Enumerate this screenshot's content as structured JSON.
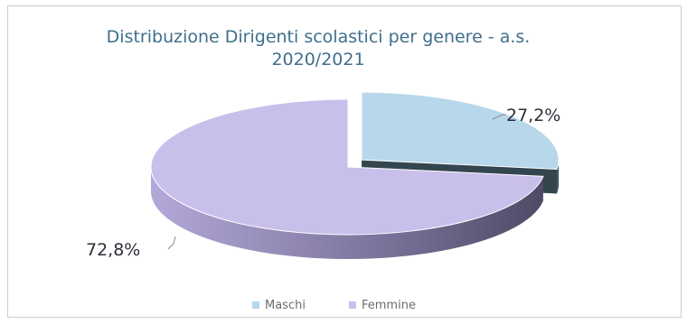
{
  "chart_data": {
    "type": "pie",
    "title": "Distribuzione Dirigenti scolastici per genere - a.s. 2020/2021",
    "title_lines": [
      "Distribuzione Dirigenti scolastici per genere - a.s.",
      "2020/2021"
    ],
    "categories": [
      "Maschi",
      "Femmine"
    ],
    "values": [
      27.2,
      72.8
    ],
    "data_labels": [
      "27,2%",
      "72,8%"
    ],
    "colors": [
      "#b7d7ea",
      "#c9bfeb"
    ],
    "side_colors": [
      "#3f5560",
      "#6a6487"
    ],
    "exploded": [
      "Maschi"
    ],
    "legend_position": "bottom",
    "style": "3d"
  }
}
